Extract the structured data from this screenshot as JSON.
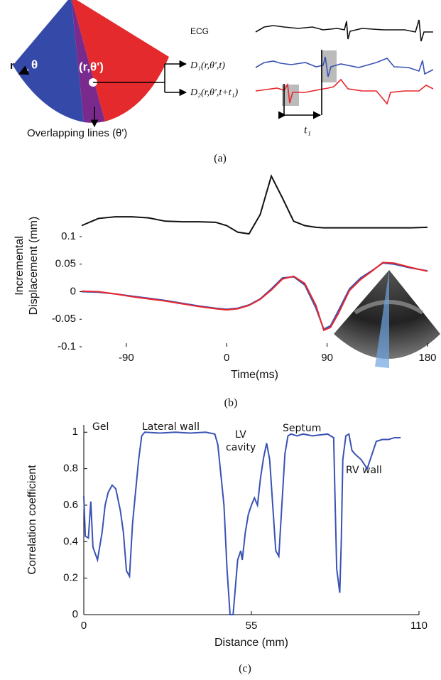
{
  "diagram": {
    "r": "r",
    "theta": "θ",
    "point": "(r,θ')",
    "overlap": "Overlapping lines (θ')",
    "ecg": "ECG",
    "d1": "D₁(r,θ',t)",
    "d2": "D₂(r,θ',t+t₁)",
    "t1": "t₁"
  },
  "captions": [
    "(a)",
    "(b)",
    "(c)"
  ],
  "chart_data": [
    {
      "type": "line",
      "xlabel": "Time(ms)",
      "ylabel": [
        "Incremental",
        "Displacement (mm)"
      ],
      "x": [
        -130,
        -115,
        -100,
        -85,
        -70,
        -55,
        -40,
        -25,
        -10,
        0,
        10,
        20,
        30,
        40,
        50,
        60,
        70,
        80,
        87,
        93,
        100,
        110,
        120,
        130,
        140,
        150,
        165,
        180
      ],
      "xlim": [
        -130,
        180
      ],
      "xticks": [
        -90,
        0,
        90,
        180
      ],
      "ylim": [
        -0.1,
        0.22
      ],
      "yticks": [
        -0.1,
        -0.05,
        0,
        0.05,
        0.1
      ],
      "series": [
        {
          "color": "#111111",
          "values": [
            0.12,
            0.133,
            0.136,
            0.136,
            0.134,
            0.128,
            0.127,
            0.127,
            0.126,
            0.12,
            0.108,
            0.105,
            0.14,
            0.21,
            0.17,
            0.128,
            0.12,
            0.117,
            0.116,
            0.116,
            0.116,
            0.116,
            0.116,
            0.116,
            0.116,
            0.116,
            0.116,
            0.117
          ]
        },
        {
          "color": "#3a52b4",
          "values": [
            0,
            -0.001,
            -0.004,
            -0.008,
            -0.012,
            -0.016,
            -0.021,
            -0.026,
            -0.03,
            -0.032,
            -0.03,
            -0.024,
            -0.013,
            0.005,
            0.025,
            0.027,
            0.012,
            -0.03,
            -0.068,
            -0.062,
            -0.035,
            0.005,
            0.025,
            0.038,
            0.052,
            0.05,
            0.043,
            0.038
          ]
        },
        {
          "color": "#e8262d",
          "values": [
            0.001,
            0,
            -0.004,
            -0.009,
            -0.013,
            -0.017,
            -0.022,
            -0.027,
            -0.031,
            -0.033,
            -0.031,
            -0.025,
            -0.014,
            0.003,
            0.023,
            0.028,
            0.015,
            -0.025,
            -0.07,
            -0.065,
            -0.04,
            0.002,
            0.022,
            0.037,
            0.053,
            0.052,
            0.044,
            0.037
          ]
        }
      ]
    },
    {
      "type": "line",
      "xlabel": "Distance (mm)",
      "ylabel": [
        "Correlation coefficient"
      ],
      "annotations": [
        "Gel",
        "Lateral wall",
        "LV",
        "cavity",
        "Septum",
        "RV wall"
      ],
      "x": [
        0,
        0.5,
        1.5,
        2.3,
        3,
        4.5,
        6,
        7,
        8,
        9.3,
        10.5,
        12,
        13,
        14,
        15,
        16,
        18,
        19,
        20,
        25,
        30,
        35,
        40,
        43,
        44,
        46,
        47,
        48,
        49,
        49.5,
        50.5,
        51.5,
        52,
        53,
        54,
        55,
        56,
        57,
        58,
        59,
        60,
        61,
        62,
        63,
        64,
        65,
        66,
        67,
        68,
        70,
        72,
        75,
        80,
        82,
        82.5,
        83,
        84,
        84.5,
        85,
        86,
        87,
        88,
        89,
        91,
        93,
        94,
        96,
        98,
        100,
        102,
        104
      ],
      "xlim": [
        0,
        110
      ],
      "xticks": [
        0,
        55,
        110
      ],
      "ylim": [
        0,
        1.04
      ],
      "yticks": [
        0,
        0.2,
        0.4,
        0.6,
        0.8,
        1
      ],
      "series": [
        {
          "color": "#3a52b4",
          "values": [
            0.65,
            0.43,
            0.42,
            0.62,
            0.37,
            0.3,
            0.45,
            0.6,
            0.67,
            0.71,
            0.69,
            0.57,
            0.45,
            0.24,
            0.21,
            0.5,
            0.85,
            0.98,
            1,
            0.995,
            1,
            0.995,
            1,
            0.99,
            0.93,
            0.6,
            0.25,
            0,
            0,
            0.1,
            0.3,
            0.35,
            0.3,
            0.45,
            0.55,
            0.6,
            0.64,
            0.6,
            0.75,
            0.86,
            0.94,
            0.85,
            0.6,
            0.35,
            0.32,
            0.6,
            0.88,
            0.98,
            0.99,
            0.98,
            0.99,
            0.98,
            0.99,
            0.97,
            0.6,
            0.25,
            0.12,
            0.4,
            0.85,
            0.98,
            0.99,
            0.9,
            0.88,
            0.85,
            0.8,
            0.85,
            0.95,
            0.96,
            0.96,
            0.97,
            0.97
          ]
        }
      ]
    }
  ]
}
